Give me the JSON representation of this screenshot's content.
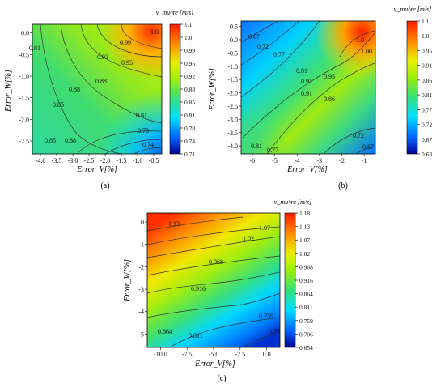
{
  "figure": {
    "panels": [
      {
        "panel_label": "(a)",
        "colorbar_title": "v_mu^re [m/s]",
        "colorbar_ticks": [
          "1.1",
          "1.0",
          "0.99",
          "0.95",
          "0.92",
          "0.88",
          "0.85",
          "0.81",
          "0.78",
          "0.74",
          "0.71"
        ],
        "xlabel": "Error_V[%]",
        "ylabel": "Error_W[%]",
        "xticks": [
          "-4.0",
          "-3.5",
          "-3.0",
          "-2.5",
          "-2.0",
          "-1.5",
          "-1.0",
          "-0.5"
        ],
        "yticks": [
          "0.0",
          "-0.5",
          "-1.0",
          "-1.5",
          "-2.0",
          "-2.5"
        ],
        "contour_labels": [
          "1.0",
          "0.99",
          "0.95",
          "0.92",
          "0.88",
          "0.88",
          "0.85",
          "0.85",
          "0.88",
          "0.81",
          "0.81",
          "0.78",
          "0.74"
        ]
      },
      {
        "panel_label": "(b)",
        "colorbar_title": "v_mu^re [m/s]",
        "colorbar_ticks": [
          "1.1",
          "1.0",
          "0.95",
          "0.91",
          "0.86",
          "0.81",
          "0.77",
          "0.72",
          "0.67",
          "0.63"
        ],
        "xlabel": "Error_V[%]",
        "ylabel": "Error_W[%]",
        "xticks": [
          "-6",
          "-5",
          "-4",
          "-3",
          "-2",
          "-1"
        ],
        "yticks": [
          "0.5",
          "0.0",
          "-0.5",
          "-1.0",
          "-1.5",
          "-2.0",
          "-2.5",
          "-3.0",
          "-3.5",
          "-4.0"
        ],
        "contour_labels": [
          "0.67",
          "0.72",
          "0.77",
          "0.81",
          "0.91",
          "0.95",
          "0.91",
          "1.0",
          "1.00",
          "0.86",
          "0.72",
          "0.67",
          "0.81",
          "0.77"
        ]
      },
      {
        "panel_label": "(c)",
        "colorbar_title": "v_mu^re [m/s]",
        "colorbar_ticks": [
          "1.18",
          "1.13",
          "1.07",
          "1.02",
          "0.968",
          "0.916",
          "0.864",
          "0.811",
          "0.759",
          "0.706",
          "0.654"
        ],
        "xlabel": "Error_V[%]",
        "ylabel": "Error_W[%]",
        "xticks": [
          "-10.0",
          "-7.5",
          "-5.0",
          "-2.5",
          "0.0"
        ],
        "yticks": [
          "0",
          "-1",
          "-2",
          "-3",
          "-4",
          "-5"
        ],
        "contour_labels": [
          "1.13",
          "1.07",
          "1.02",
          "0.968",
          "0.916",
          "0.864",
          "0.811",
          "0.759",
          "0.70"
        ]
      }
    ]
  },
  "chart_data": [
    {
      "type": "heatmap",
      "subtype": "filled-contour",
      "title": "",
      "xlabel": "Error_V[%]",
      "ylabel": "Error_W[%]",
      "xlim": [
        -4.2,
        -0.2
      ],
      "ylim": [
        -2.8,
        0.3
      ],
      "zlim": [
        0.71,
        1.1
      ],
      "colormap": [
        "#000090",
        "#0070ff",
        "#00e0ff",
        "#30e080",
        "#a0f000",
        "#ffe000",
        "#ff8000",
        "#ff2000"
      ],
      "sample_points": [
        {
          "x": -0.3,
          "y": 0.0,
          "z": 1.06
        },
        {
          "x": -1.2,
          "y": 0.0,
          "z": 0.99
        },
        {
          "x": -2.0,
          "y": -0.8,
          "z": 0.92
        },
        {
          "x": -2.5,
          "y": -1.5,
          "z": 0.88
        },
        {
          "x": -3.5,
          "y": -1.4,
          "z": 0.85
        },
        {
          "x": -4.0,
          "y": -0.5,
          "z": 0.82
        },
        {
          "x": -1.0,
          "y": -2.0,
          "z": 0.81
        },
        {
          "x": -0.6,
          "y": -2.3,
          "z": 0.78
        },
        {
          "x": -0.4,
          "y": -2.6,
          "z": 0.74
        }
      ]
    },
    {
      "type": "heatmap",
      "subtype": "filled-contour",
      "title": "",
      "xlabel": "Error_V[%]",
      "ylabel": "Error_W[%]",
      "xlim": [
        -6.4,
        0.0
      ],
      "ylim": [
        -4.2,
        0.5
      ],
      "zlim": [
        0.63,
        1.1
      ],
      "colormap": [
        "#000090",
        "#0070ff",
        "#00e0ff",
        "#30e080",
        "#a0f000",
        "#ffe000",
        "#ff8000",
        "#ff2000"
      ],
      "sample_points": [
        {
          "x": -6.0,
          "y": 0.0,
          "z": 0.67
        },
        {
          "x": -5.0,
          "y": -0.5,
          "z": 0.74
        },
        {
          "x": -3.5,
          "y": -1.2,
          "z": 0.83
        },
        {
          "x": -2.5,
          "y": -1.8,
          "z": 0.92
        },
        {
          "x": -1.0,
          "y": 0.0,
          "z": 1.05
        },
        {
          "x": -0.3,
          "y": 0.3,
          "z": 1.09
        },
        {
          "x": -1.5,
          "y": -2.2,
          "z": 0.86
        },
        {
          "x": -1.2,
          "y": -3.5,
          "z": 0.72
        },
        {
          "x": -0.5,
          "y": -4.0,
          "z": 0.66
        },
        {
          "x": -5.5,
          "y": -3.8,
          "z": 0.82
        }
      ]
    },
    {
      "type": "heatmap",
      "subtype": "filled-contour",
      "title": "",
      "xlabel": "Error_V[%]",
      "ylabel": "Error_W[%]",
      "xlim": [
        -11.0,
        0.5
      ],
      "ylim": [
        -5.8,
        0.6
      ],
      "zlim": [
        0.654,
        1.18
      ],
      "colormap": [
        "#000090",
        "#0070ff",
        "#00e0ff",
        "#30e080",
        "#a0f000",
        "#ffe000",
        "#ff8000",
        "#ff2000"
      ],
      "sample_points": [
        {
          "x": -10.5,
          "y": 0.4,
          "z": 1.16
        },
        {
          "x": -8.0,
          "y": 0.0,
          "z": 1.12
        },
        {
          "x": -3.0,
          "y": 0.2,
          "z": 1.07
        },
        {
          "x": -6.0,
          "y": -1.5,
          "z": 0.98
        },
        {
          "x": -7.0,
          "y": -3.0,
          "z": 0.91
        },
        {
          "x": -9.0,
          "y": -4.5,
          "z": 0.86
        },
        {
          "x": -5.0,
          "y": -4.5,
          "z": 0.81
        },
        {
          "x": -1.5,
          "y": -4.0,
          "z": 0.76
        },
        {
          "x": -0.2,
          "y": -5.5,
          "z": 0.69
        }
      ]
    }
  ]
}
